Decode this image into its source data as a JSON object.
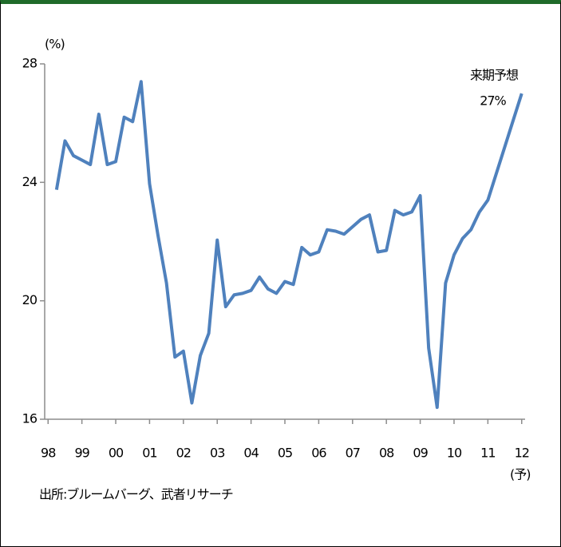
{
  "chart_data": {
    "type": "line",
    "y_unit": "(%)",
    "x_note": "(予)",
    "annotation": "来期予想",
    "source": "出所:ブルームバーグ、武者リサーチ",
    "xlim": [
      1998.4,
      2012.6
    ],
    "xticks": [
      {
        "value": 1998.5,
        "label": "98"
      },
      {
        "value": 1999.5,
        "label": "99"
      },
      {
        "value": 2000.5,
        "label": "00"
      },
      {
        "value": 2001.5,
        "label": "01"
      },
      {
        "value": 2002.5,
        "label": "02"
      },
      {
        "value": 2003.5,
        "label": "03"
      },
      {
        "value": 2004.5,
        "label": "04"
      },
      {
        "value": 2005.5,
        "label": "05"
      },
      {
        "value": 2006.5,
        "label": "06"
      },
      {
        "value": 2007.5,
        "label": "07"
      },
      {
        "value": 2008.5,
        "label": "08"
      },
      {
        "value": 2009.5,
        "label": "09"
      },
      {
        "value": 2010.5,
        "label": "10"
      },
      {
        "value": 2011.5,
        "label": "11"
      },
      {
        "value": 2012.5,
        "label": "12"
      }
    ],
    "ylim": [
      16,
      28
    ],
    "yticks": [
      16,
      20,
      24,
      28
    ],
    "series": [
      {
        "color": "#4f81bd",
        "x": [
          1998.75,
          1999,
          1999.25,
          1999.5,
          1999.75,
          2000,
          2000.25,
          2000.5,
          2000.75,
          2001,
          2001.25,
          2001.5,
          2001.75,
          2002,
          2002.25,
          2002.5,
          2002.75,
          2003,
          2003.25,
          2003.5,
          2003.75,
          2004,
          2004.25,
          2004.5,
          2004.75,
          2005,
          2005.25,
          2005.5,
          2005.75,
          2006,
          2006.25,
          2006.5,
          2006.75,
          2007,
          2007.25,
          2007.5,
          2007.75,
          2008,
          2008.25,
          2008.5,
          2008.75,
          2009,
          2009.25,
          2009.5,
          2009.75,
          2010,
          2010.25,
          2010.5,
          2010.75,
          2011,
          2011.25,
          2011.5,
          2012.5
        ],
        "values": [
          23.75,
          25.4,
          24.9,
          24.75,
          24.6,
          26.3,
          24.6,
          24.7,
          26.2,
          26.05,
          27.4,
          23.95,
          22.2,
          20.6,
          18.1,
          18.3,
          16.55,
          18.15,
          18.9,
          22.05,
          19.8,
          20.2,
          20.25,
          20.35,
          20.8,
          20.4,
          20.25,
          20.65,
          20.55,
          21.8,
          21.55,
          21.65,
          22.4,
          22.35,
          22.25,
          22.5,
          22.75,
          22.9,
          21.65,
          21.7,
          23.05,
          22.9,
          23.0,
          23.55,
          18.4,
          16.4,
          20.6,
          21.55,
          22.1,
          22.4,
          23.0,
          23.4,
          27
        ],
        "value_labels": [
          null,
          null,
          null,
          null,
          null,
          null,
          null,
          null,
          null,
          null,
          null,
          null,
          null,
          null,
          null,
          null,
          null,
          null,
          null,
          null,
          null,
          null,
          null,
          null,
          null,
          null,
          null,
          null,
          null,
          null,
          null,
          null,
          null,
          null,
          null,
          null,
          null,
          null,
          null,
          null,
          null,
          null,
          null,
          null,
          null,
          null,
          null,
          null,
          null,
          null,
          null,
          null,
          "27%"
        ]
      }
    ]
  }
}
